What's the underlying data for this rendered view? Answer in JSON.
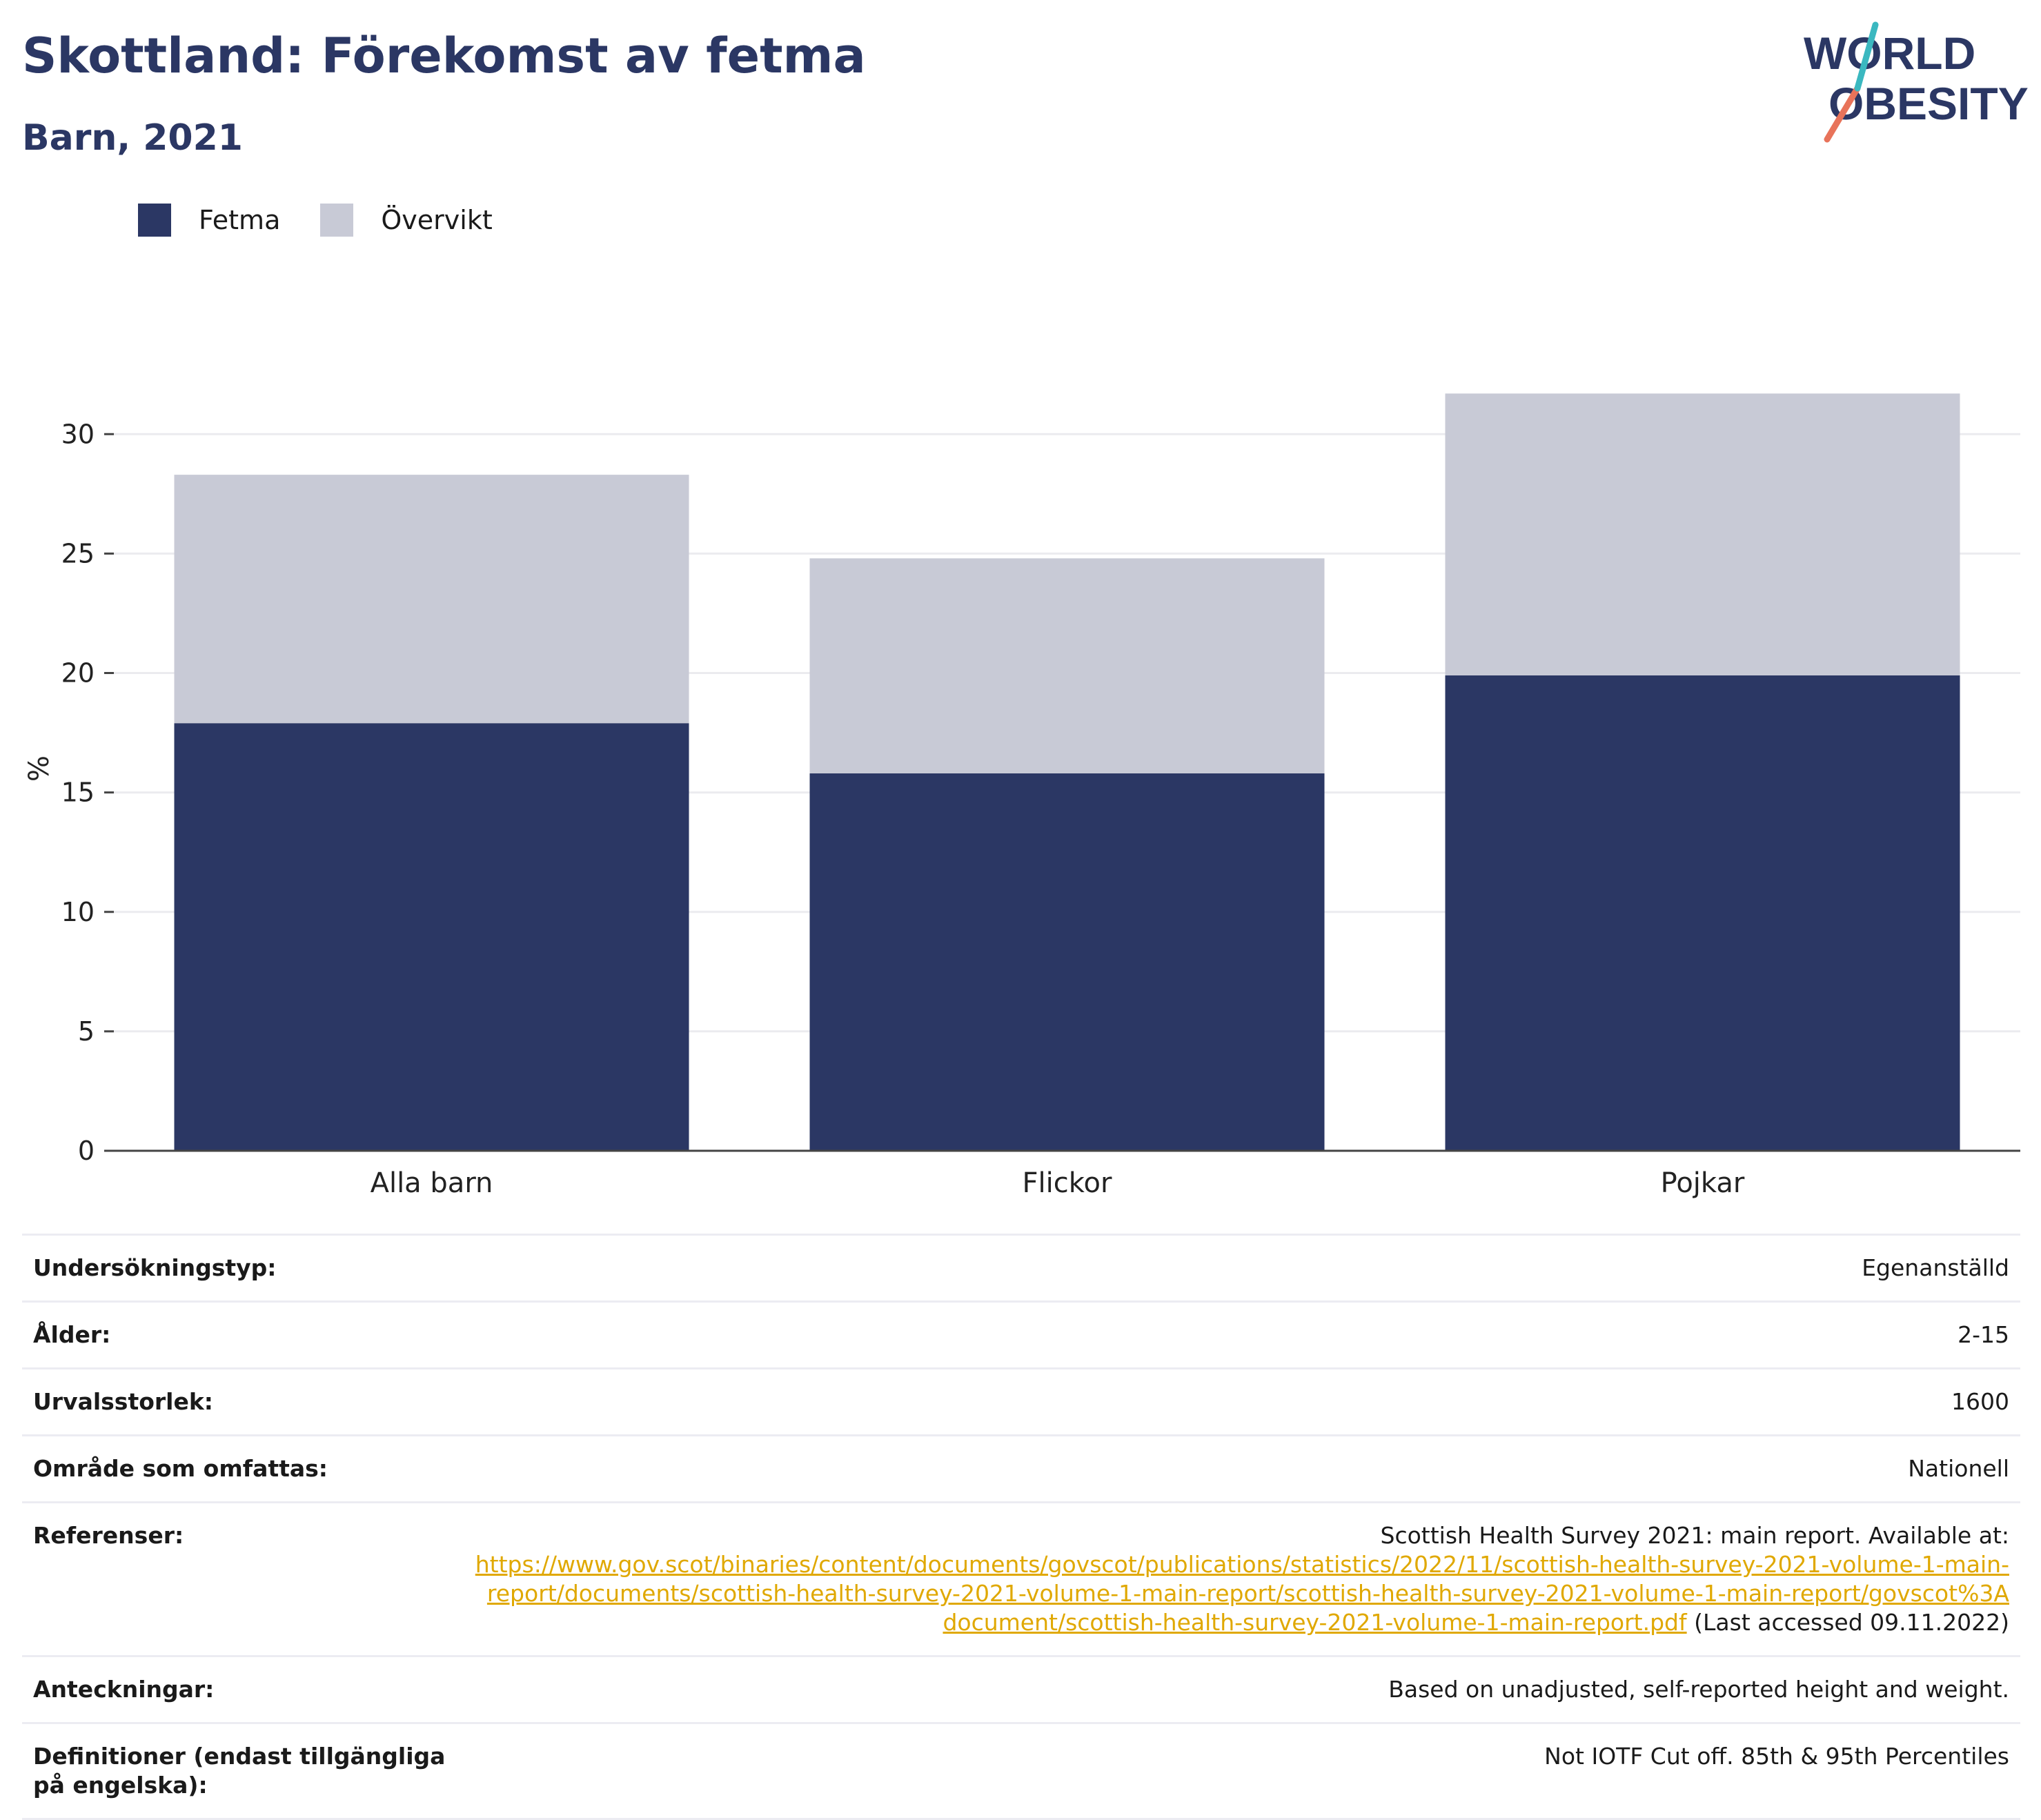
{
  "header": {
    "title": "Skottland: Förekomst av fetma",
    "subtitle": "Barn, 2021"
  },
  "logo": {
    "line1": "WORLD",
    "line2": "OBESITY"
  },
  "legend": [
    {
      "label": "Fetma",
      "color": "#2b3764"
    },
    {
      "label": "Övervikt",
      "color": "#c8cad6"
    }
  ],
  "chart_data": {
    "type": "bar",
    "stacked": true,
    "categories": [
      "Alla barn",
      "Flickor",
      "Pojkar"
    ],
    "series": [
      {
        "name": "Fetma",
        "color": "#2b3764",
        "values": [
          17.9,
          15.8,
          19.9
        ]
      },
      {
        "name": "Övervikt",
        "color": "#c8cad6",
        "values": [
          10.4,
          9.0,
          11.8
        ]
      }
    ],
    "ylabel": "%",
    "ylim": [
      0,
      32
    ],
    "yticks": [
      0,
      5,
      10,
      15,
      20,
      25,
      30
    ],
    "grid": true
  },
  "meta": [
    {
      "key": "Undersökningstyp:",
      "value": "Egenanställd"
    },
    {
      "key": "Ålder:",
      "value": "2-15"
    },
    {
      "key": "Urvalsstorlek:",
      "value": "1600"
    },
    {
      "key": "Område som omfattas:",
      "value": "Nationell"
    },
    {
      "key": "Referenser:",
      "value": "Scottish Health Survey 2021: main report. Available at:",
      "link": "https://www.gov.scot/binaries/content/documents/govscot/publications/statistics/2022/11/scottish-health-survey-2021-volume-1-main-report/documents/scottish-health-survey-2021-volume-1-main-report/scottish-health-survey-2021-volume-1-main-report/govscot%3Adocument/scottish-health-survey-2021-volume-1-main-report.pdf",
      "suffix": "(Last accessed 09.11.2022)"
    },
    {
      "key": "Anteckningar:",
      "value": "Based on unadjusted, self-reported height and weight."
    },
    {
      "key": "Definitioner (endast tillgängliga på engelska):",
      "value": "Not IOTF Cut off. 85th & 95th Percentiles"
    }
  ]
}
